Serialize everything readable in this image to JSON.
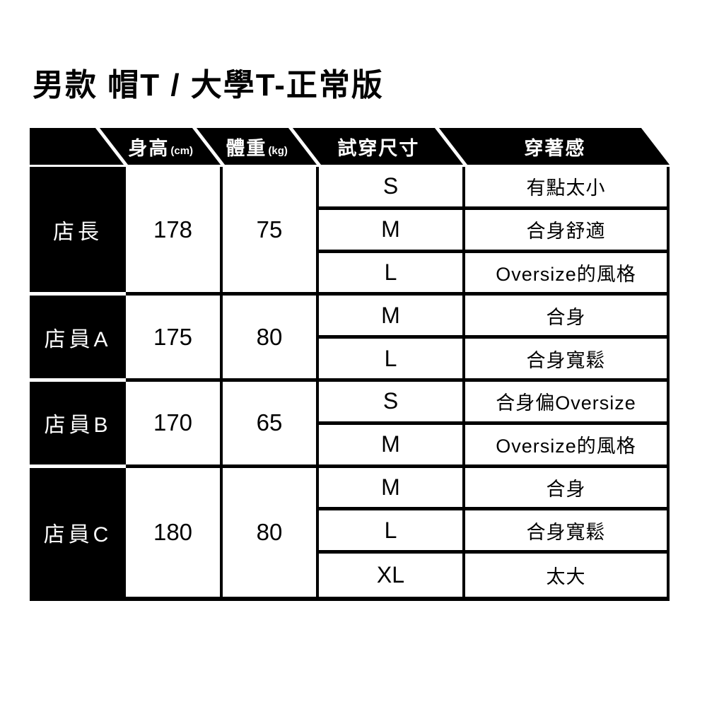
{
  "title": "男款 帽T / 大學T-正常版",
  "colors": {
    "band": "#000000",
    "row_label_bg": "#000000",
    "text": "#000000",
    "inverse_text": "#ffffff",
    "background": "#ffffff"
  },
  "table": {
    "headers": [
      {
        "label": "身高",
        "unit": "(cm)"
      },
      {
        "label": "體重",
        "unit": "(kg)"
      },
      {
        "label": "試穿尺寸",
        "unit": ""
      },
      {
        "label": "穿著感",
        "unit": ""
      }
    ],
    "groups": [
      {
        "name": "店長",
        "height": "178",
        "weight": "75",
        "rows": [
          {
            "size": "S",
            "feel": "有點太小"
          },
          {
            "size": "M",
            "feel": "合身舒適"
          },
          {
            "size": "L",
            "feel": "Oversize的風格"
          }
        ]
      },
      {
        "name": "店員A",
        "height": "175",
        "weight": "80",
        "rows": [
          {
            "size": "M",
            "feel": "合身"
          },
          {
            "size": "L",
            "feel": "合身寬鬆"
          }
        ]
      },
      {
        "name": "店員B",
        "height": "170",
        "weight": "65",
        "rows": [
          {
            "size": "S",
            "feel": "合身偏Oversize"
          },
          {
            "size": "M",
            "feel": "Oversize的風格"
          }
        ]
      },
      {
        "name": "店員C",
        "height": "180",
        "weight": "80",
        "rows": [
          {
            "size": "M",
            "feel": "合身"
          },
          {
            "size": "L",
            "feel": "合身寬鬆"
          },
          {
            "size": "XL",
            "feel": "太大"
          }
        ]
      }
    ]
  },
  "chart_data": {
    "type": "table",
    "title": "男款 帽T / 大學T-正常版",
    "columns": [
      "",
      "身高(cm)",
      "體重(kg)",
      "試穿尺寸",
      "穿著感"
    ],
    "rows": [
      [
        "店長",
        "178",
        "75",
        "S",
        "有點太小"
      ],
      [
        "店長",
        "178",
        "75",
        "M",
        "合身舒適"
      ],
      [
        "店長",
        "178",
        "75",
        "L",
        "Oversize的風格"
      ],
      [
        "店員A",
        "175",
        "80",
        "M",
        "合身"
      ],
      [
        "店員A",
        "175",
        "80",
        "L",
        "合身寬鬆"
      ],
      [
        "店員B",
        "170",
        "65",
        "S",
        "合身偏Oversize"
      ],
      [
        "店員B",
        "170",
        "65",
        "M",
        "Oversize的風格"
      ],
      [
        "店員C",
        "180",
        "80",
        "M",
        "合身"
      ],
      [
        "店員C",
        "180",
        "80",
        "L",
        "合身寬鬆"
      ],
      [
        "店員C",
        "180",
        "80",
        "XL",
        "太大"
      ]
    ]
  }
}
